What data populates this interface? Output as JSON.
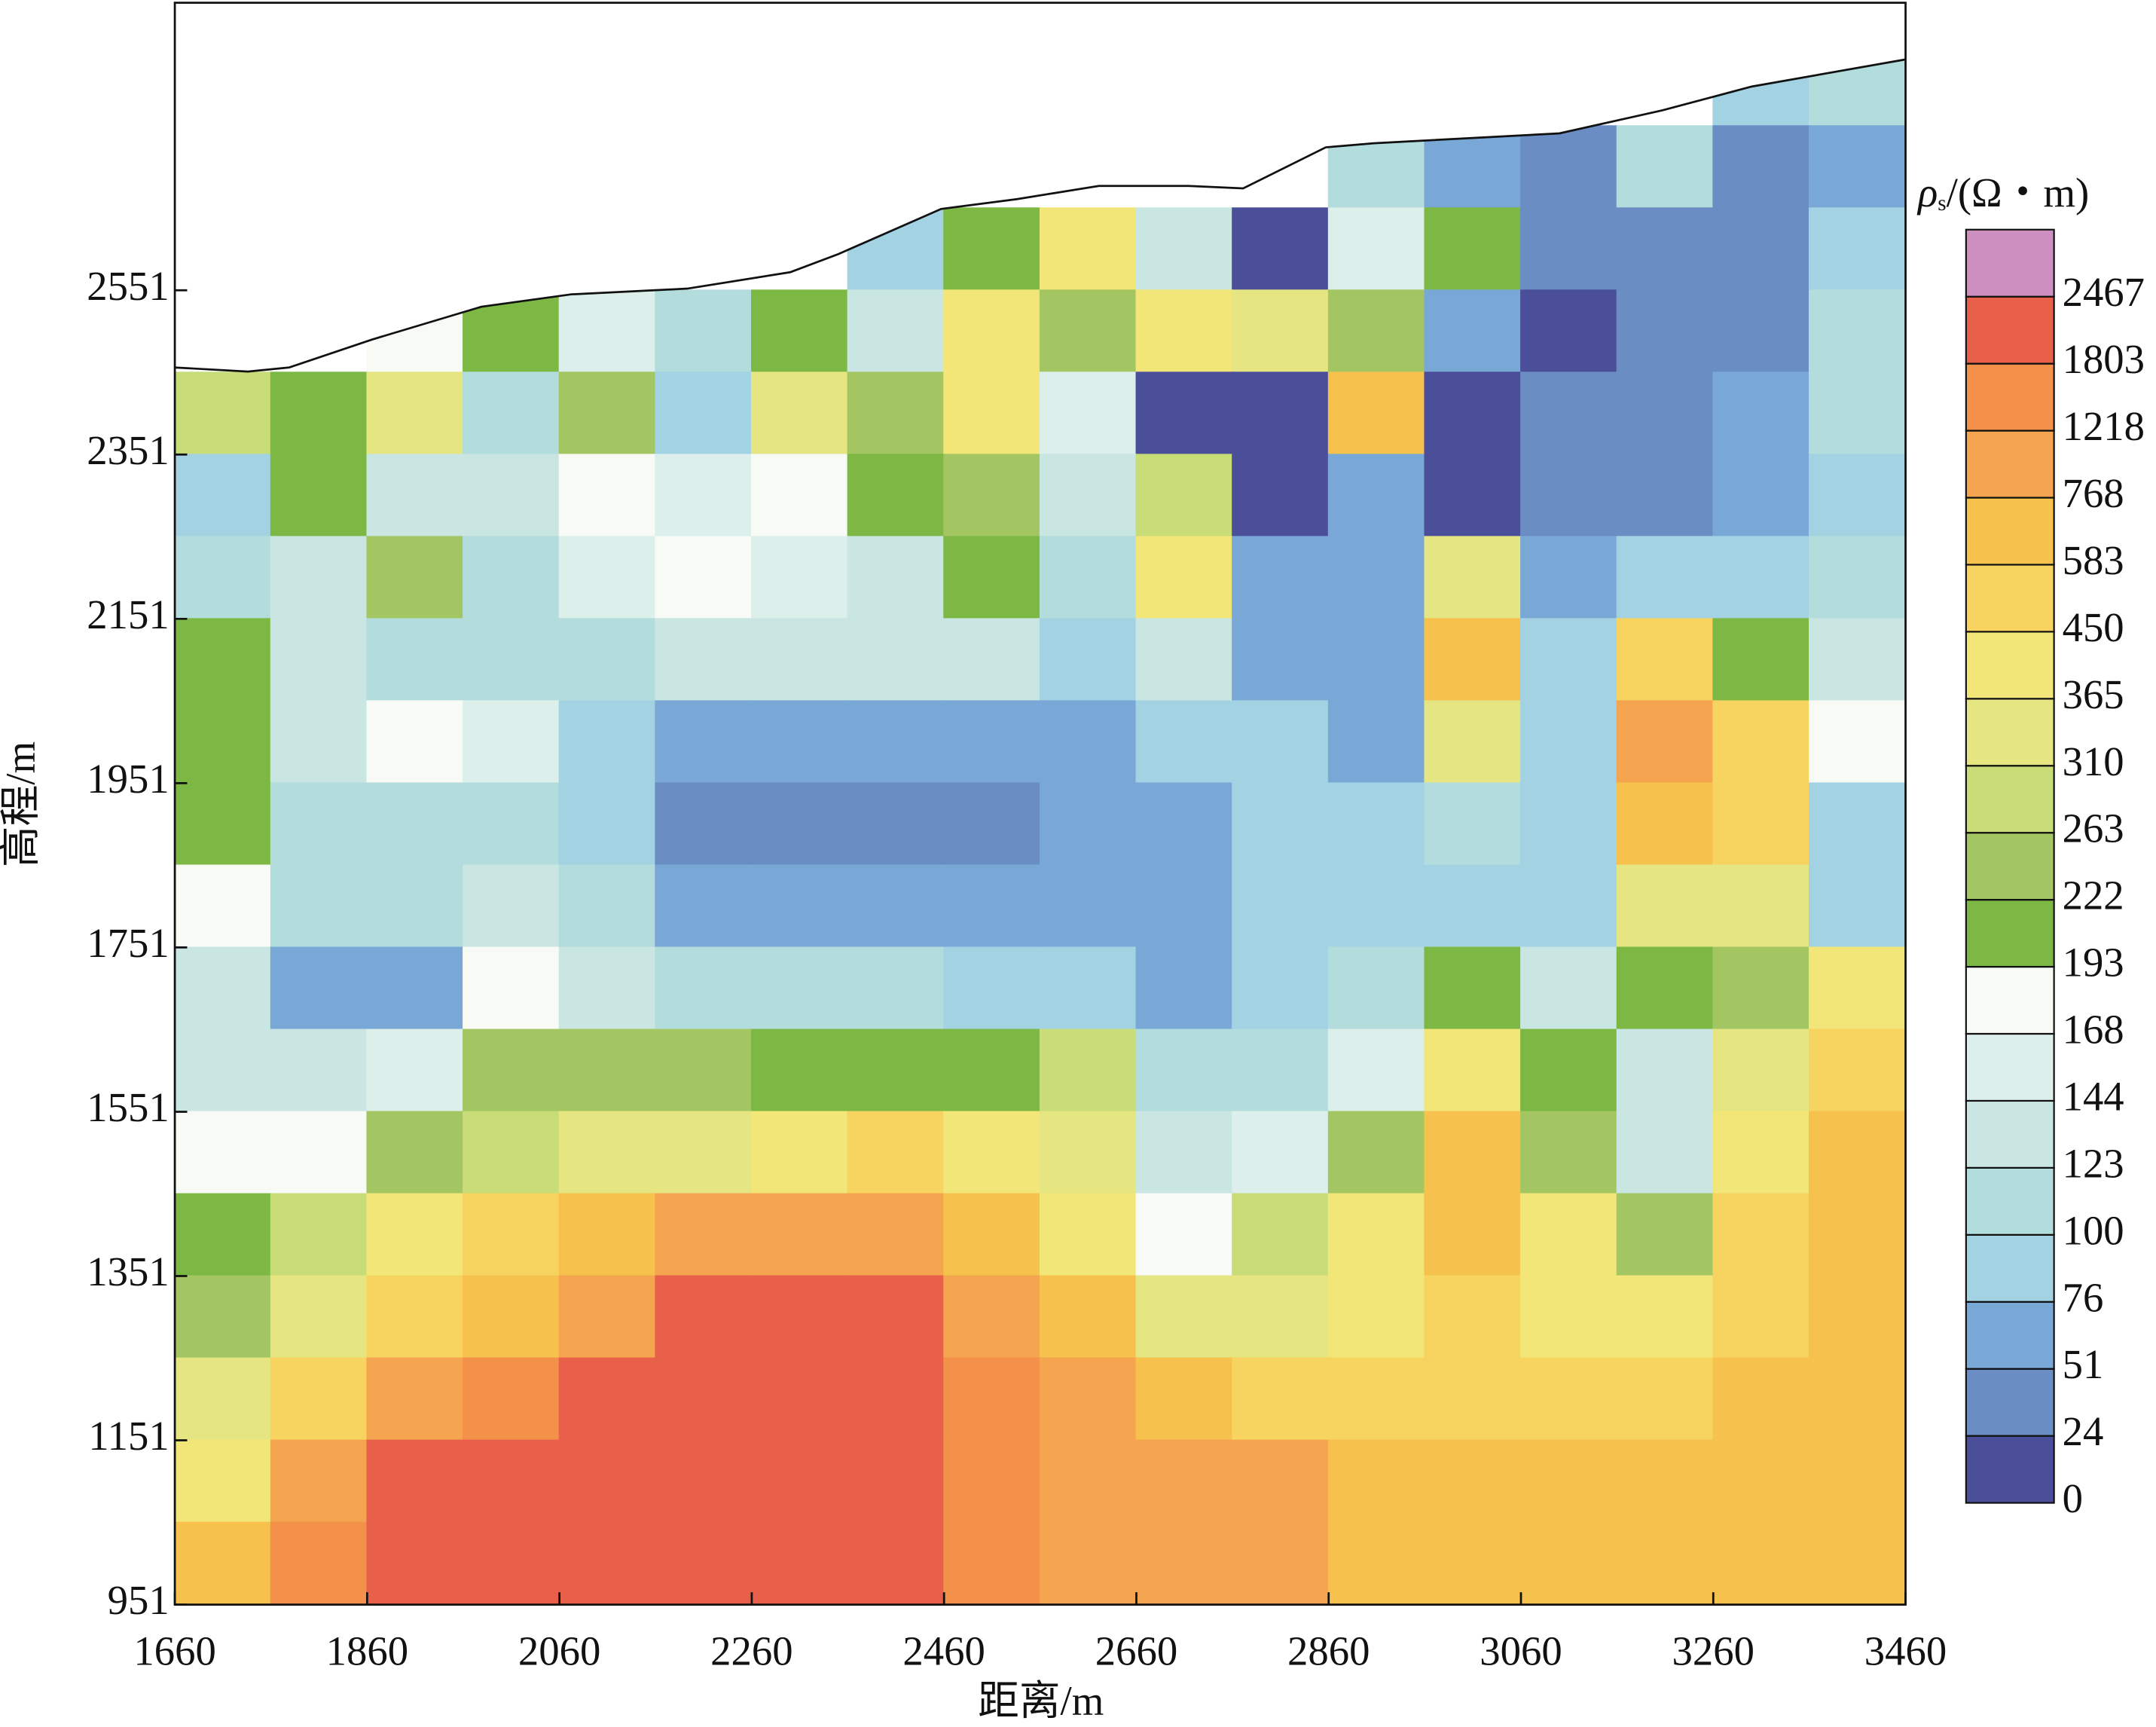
{
  "chart_data": {
    "type": "contour",
    "xlabel": "距离/m",
    "ylabel": "高程/m",
    "colorbar_symbol": "ρ",
    "colorbar_subscript": "s",
    "colorbar_unit": "/(Ω・m)",
    "xlim": [
      1660,
      3460
    ],
    "ylim": [
      951,
      2901
    ],
    "xticks": [
      1660,
      1860,
      2060,
      2260,
      2460,
      2660,
      2860,
      3060,
      3260,
      3460
    ],
    "yticks": [
      951,
      1151,
      1351,
      1551,
      1751,
      1951,
      2151,
      2351,
      2551
    ],
    "levels": [
      0,
      24,
      51,
      76,
      100,
      123,
      144,
      168,
      193,
      222,
      263,
      310,
      365,
      450,
      583,
      768,
      1218,
      1803,
      2467
    ],
    "colors": [
      "#4b4f9a",
      "#6a8ec3",
      "#79a8d6",
      "#a3d3e3",
      "#b3dcdc",
      "#c9e6e2",
      "#dcefeb",
      "#f7faf5",
      "#7cb843",
      "#a3c662",
      "#c8dc78",
      "#e5e582",
      "#f3e678",
      "#f7d360",
      "#f6c14d",
      "#f5a550",
      "#f3904a",
      "#e8604a",
      "#cc8fbf"
    ],
    "surface_x": [
      1660,
      1736,
      1779,
      1865,
      1979,
      2072,
      2193,
      2300,
      2350,
      2457,
      2536,
      2621,
      2714,
      2771,
      2857,
      2907,
      3100,
      3207,
      3300,
      3460
    ],
    "surface_y": [
      2457,
      2452,
      2457,
      2491,
      2531,
      2546,
      2553,
      2573,
      2595,
      2650,
      2662,
      2678,
      2678,
      2675,
      2725,
      2730,
      2742,
      2770,
      2799,
      2832
    ],
    "x": [
      1710,
      1810,
      1910,
      2010,
      2110,
      2210,
      2310,
      2410,
      2510,
      2610,
      2710,
      2810,
      2910,
      3010,
      3110,
      3210,
      3310,
      3410
    ],
    "y": [
      2801,
      2701,
      2601,
      2501,
      2401,
      2301,
      2201,
      2101,
      2001,
      1901,
      1801,
      1701,
      1601,
      1501,
      1401,
      1301,
      1201,
      1101,
      1001
    ],
    "z": [
      [
        null,
        null,
        null,
        null,
        null,
        null,
        null,
        null,
        null,
        null,
        null,
        null,
        null,
        null,
        null,
        null,
        88,
        112
      ],
      [
        null,
        null,
        null,
        null,
        null,
        null,
        null,
        null,
        null,
        null,
        null,
        null,
        112,
        64,
        38,
        112,
        38,
        64
      ],
      [
        null,
        null,
        null,
        null,
        null,
        null,
        null,
        88,
        208,
        408,
        134,
        12,
        156,
        208,
        38,
        38,
        38,
        88
      ],
      [
        null,
        null,
        180,
        208,
        156,
        112,
        208,
        134,
        408,
        242,
        408,
        338,
        242,
        64,
        12,
        38,
        38,
        112
      ],
      [
        286,
        208,
        338,
        100,
        242,
        88,
        338,
        242,
        408,
        156,
        12,
        12,
        676,
        12,
        38,
        38,
        64,
        112
      ],
      [
        88,
        208,
        134,
        134,
        180,
        156,
        180,
        208,
        242,
        134,
        286,
        12,
        64,
        12,
        38,
        38,
        64,
        88
      ],
      [
        112,
        134,
        242,
        112,
        156,
        180,
        156,
        134,
        208,
        112,
        408,
        64,
        64,
        338,
        64,
        88,
        88,
        112
      ],
      [
        208,
        134,
        112,
        112,
        112,
        134,
        134,
        134,
        134,
        88,
        134,
        64,
        64,
        676,
        88,
        516,
        208,
        134
      ],
      [
        208,
        134,
        180,
        156,
        88,
        64,
        64,
        64,
        64,
        64,
        88,
        88,
        64,
        338,
        88,
        990,
        516,
        180
      ],
      [
        208,
        112,
        112,
        112,
        88,
        38,
        38,
        38,
        38,
        64,
        64,
        88,
        88,
        112,
        88,
        676,
        516,
        88
      ],
      [
        180,
        112,
        112,
        134,
        112,
        64,
        64,
        64,
        64,
        64,
        64,
        88,
        88,
        88,
        88,
        338,
        338,
        88
      ],
      [
        134,
        64,
        64,
        180,
        134,
        112,
        112,
        112,
        88,
        88,
        64,
        88,
        112,
        208,
        134,
        208,
        242,
        408
      ],
      [
        134,
        134,
        156,
        242,
        242,
        242,
        208,
        208,
        208,
        286,
        112,
        112,
        156,
        408,
        208,
        134,
        338,
        516
      ],
      [
        180,
        180,
        242,
        286,
        338,
        338,
        408,
        516,
        408,
        338,
        134,
        156,
        242,
        676,
        242,
        134,
        408,
        676
      ],
      [
        208,
        286,
        408,
        516,
        676,
        990,
        990,
        990,
        676,
        408,
        180,
        286,
        408,
        676,
        408,
        242,
        516,
        676
      ],
      [
        242,
        338,
        516,
        676,
        990,
        2100,
        2100,
        2100,
        990,
        676,
        338,
        338,
        408,
        516,
        408,
        408,
        516,
        676
      ],
      [
        338,
        516,
        990,
        1510,
        2100,
        2100,
        2100,
        2100,
        1510,
        990,
        676,
        516,
        516,
        516,
        516,
        516,
        676,
        676
      ],
      [
        408,
        990,
        2100,
        2100,
        2100,
        2100,
        2100,
        2100,
        1510,
        990,
        990,
        990,
        676,
        676,
        676,
        676,
        676,
        676
      ],
      [
        676,
        1510,
        2100,
        2100,
        2100,
        2100,
        2100,
        2100,
        1510,
        990,
        990,
        990,
        676,
        676,
        676,
        676,
        676,
        676
      ]
    ]
  }
}
